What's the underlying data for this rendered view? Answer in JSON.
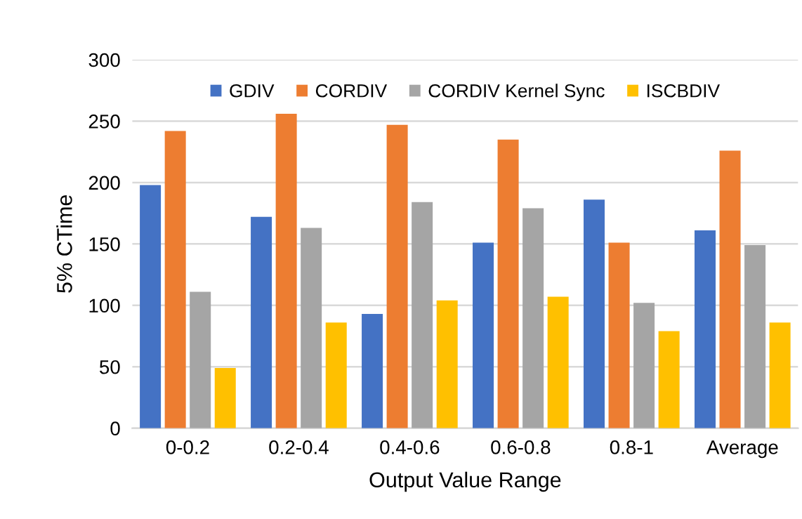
{
  "chart_data": {
    "type": "bar",
    "xlabel": "Output Value Range",
    "ylabel": "5% CTime",
    "categories": [
      "0-0.2",
      "0.2-0.4",
      "0.4-0.6",
      "0.6-0.8",
      "0.8-1",
      "Average"
    ],
    "series": [
      {
        "name": "GDIV",
        "color": "#4472c4",
        "values": [
          198,
          172,
          93,
          151,
          186,
          161
        ]
      },
      {
        "name": "CORDIV",
        "color": "#ed7d31",
        "values": [
          242,
          256,
          247,
          235,
          151,
          226
        ]
      },
      {
        "name": "CORDIV Kernel Sync",
        "color": "#a5a5a5",
        "values": [
          111,
          163,
          184,
          179,
          102,
          149
        ]
      },
      {
        "name": "ISCBDIV",
        "color": "#ffc000",
        "values": [
          49,
          86,
          104,
          107,
          79,
          86
        ]
      }
    ],
    "ylim": [
      0,
      300
    ],
    "yticks": [
      0,
      50,
      100,
      150,
      200,
      250,
      300
    ],
    "grid": "y",
    "legend": "top"
  }
}
